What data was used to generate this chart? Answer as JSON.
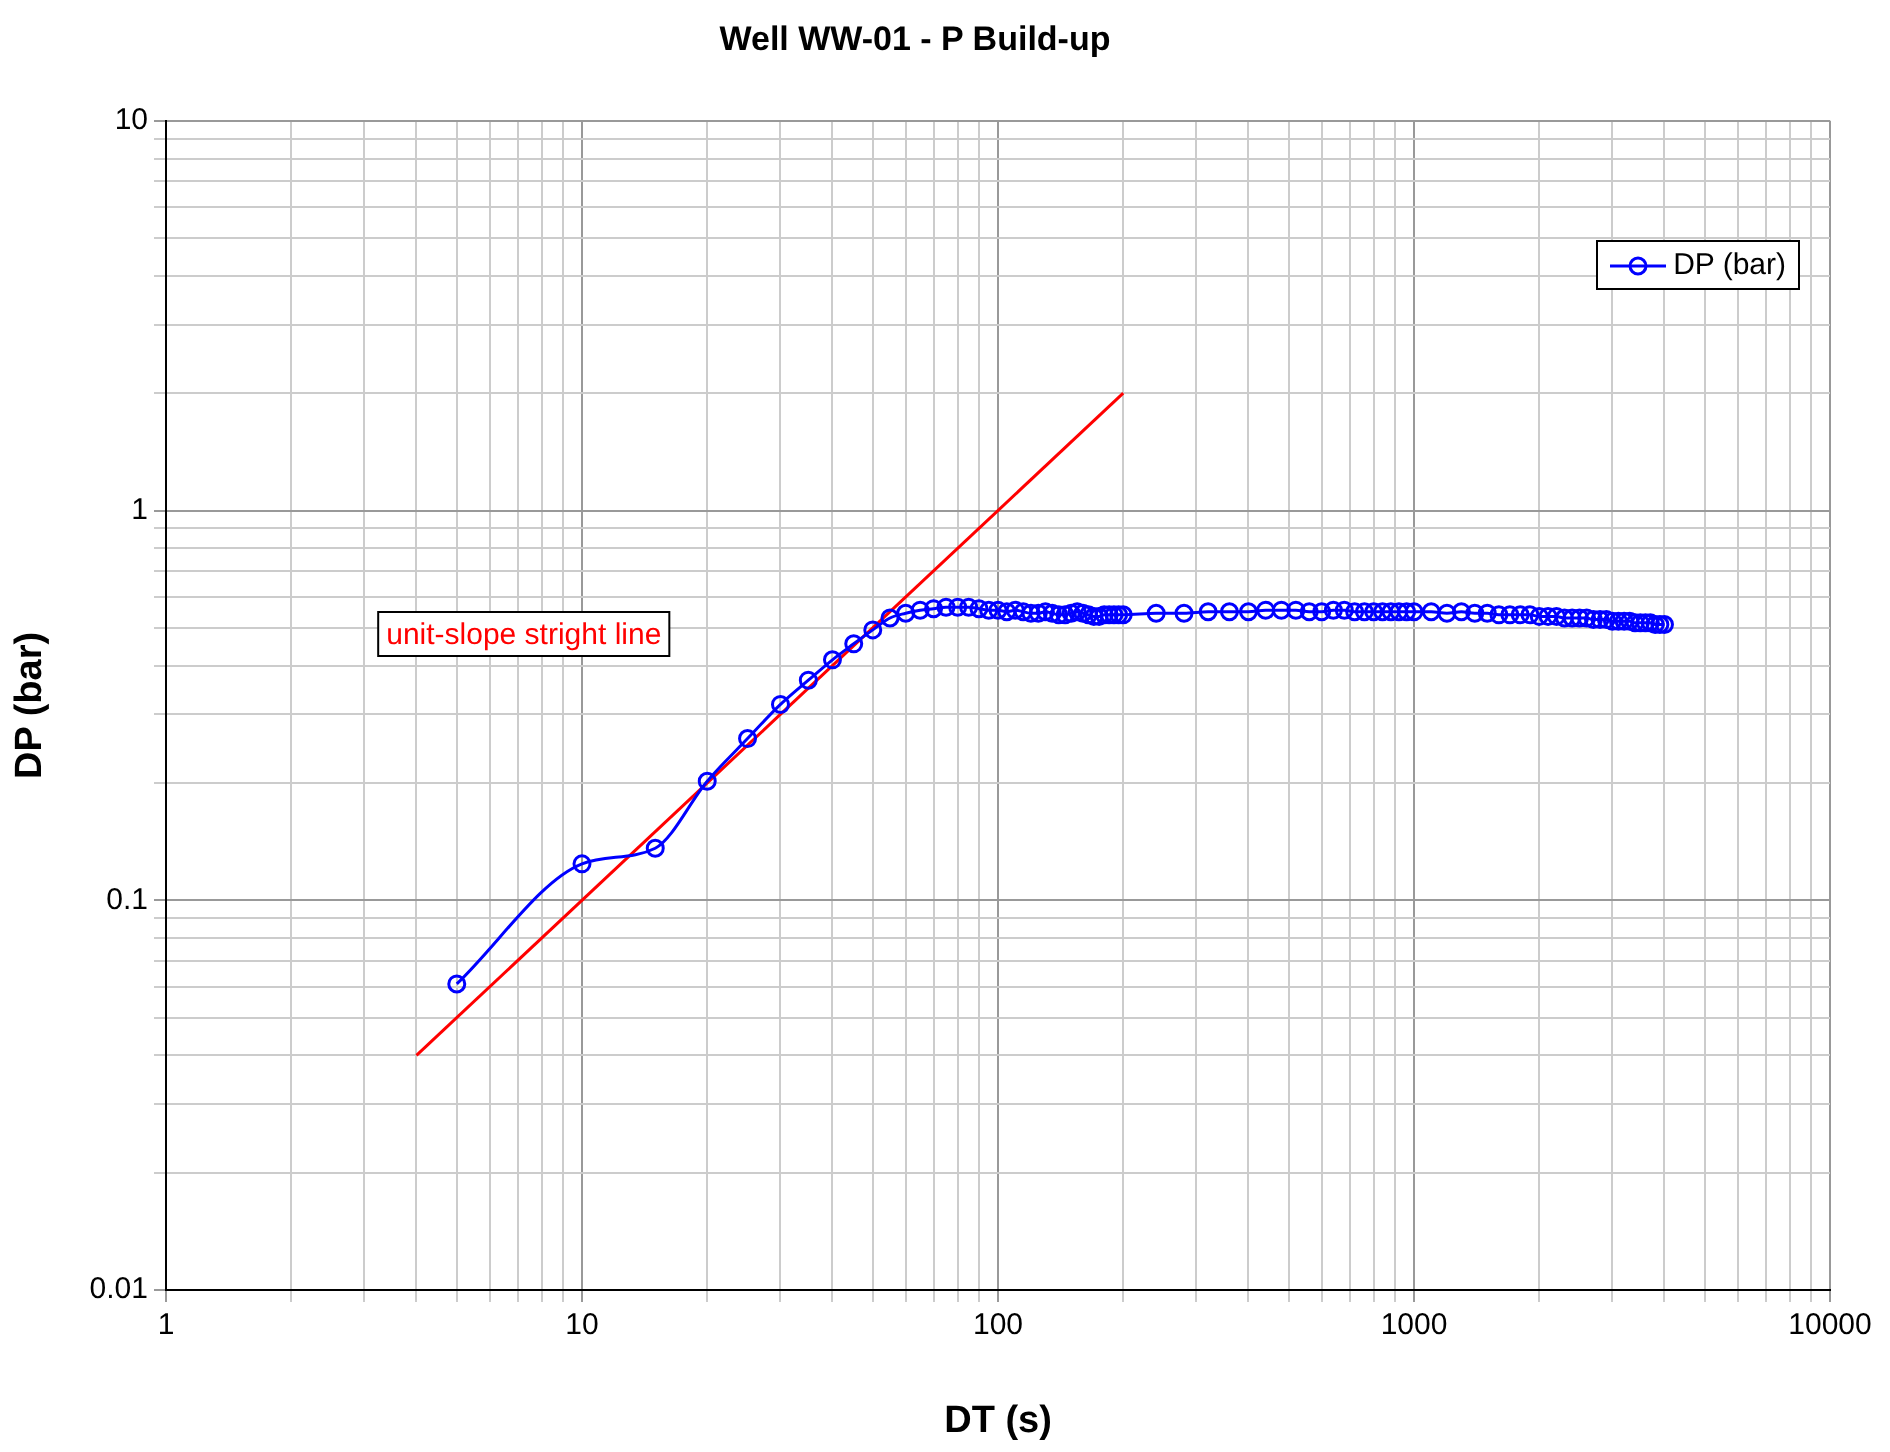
{
  "chart_data": {
    "type": "line",
    "title": "Well WW-01 - P Build-up",
    "xlabel": "DT (s)",
    "ylabel": "DP (bar)",
    "log": "xy",
    "grid": true,
    "legend": "top right",
    "marker": "circle",
    "line_style": "solid",
    "xlim": [
      1,
      10000
    ],
    "ylim": [
      0.01,
      10
    ],
    "xticks": [
      1,
      {
        "value": 2,
        "label": null
      },
      {
        "value": 3,
        "label": null
      },
      {
        "value": 4,
        "label": null
      },
      {
        "value": 5,
        "label": null
      },
      {
        "value": 6,
        "label": null
      },
      {
        "value": 7,
        "label": null
      },
      {
        "value": 8,
        "label": null
      },
      {
        "value": 9,
        "label": null
      },
      10,
      {
        "value": 20,
        "label": null
      },
      {
        "value": 30,
        "label": null
      },
      {
        "value": 40,
        "label": null
      },
      {
        "value": 50,
        "label": null
      },
      {
        "value": 60,
        "label": null
      },
      {
        "value": 70,
        "label": null
      },
      {
        "value": 80,
        "label": null
      },
      {
        "value": 90,
        "label": null
      },
      100,
      {
        "value": 200,
        "label": null
      },
      {
        "value": 300,
        "label": null
      },
      {
        "value": 400,
        "label": null
      },
      {
        "value": 500,
        "label": null
      },
      {
        "value": 600,
        "label": null
      },
      {
        "value": 700,
        "label": null
      },
      {
        "value": 800,
        "label": null
      },
      {
        "value": 900,
        "label": null
      },
      1000,
      {
        "value": 2000,
        "label": null
      },
      {
        "value": 3000,
        "label": null
      },
      {
        "value": 4000,
        "label": null
      },
      {
        "value": 5000,
        "label": null
      },
      {
        "value": 6000,
        "label": null
      },
      {
        "value": 7000,
        "label": null
      },
      {
        "value": 8000,
        "label": null
      },
      {
        "value": 9000,
        "label": null
      },
      10000
    ],
    "yticks": [
      0.01,
      {
        "value": 0.02,
        "label": null
      },
      {
        "value": 0.03,
        "label": null
      },
      {
        "value": 0.04,
        "label": null
      },
      {
        "value": 0.05,
        "label": null
      },
      {
        "value": 0.06,
        "label": null
      },
      {
        "value": 0.07,
        "label": null
      },
      {
        "value": 0.08,
        "label": null
      },
      {
        "value": 0.09,
        "label": null
      },
      0.1,
      {
        "value": 0.2,
        "label": null
      },
      {
        "value": 0.3,
        "label": null
      },
      {
        "value": 0.4,
        "label": null
      },
      {
        "value": 0.5,
        "label": null
      },
      {
        "value": 0.6,
        "label": null
      },
      {
        "value": 0.7,
        "label": null
      },
      {
        "value": 0.8,
        "label": null
      },
      {
        "value": 0.9,
        "label": null
      },
      1,
      {
        "value": 2,
        "label": null
      },
      {
        "value": 3,
        "label": null
      },
      {
        "value": 4,
        "label": null
      },
      {
        "value": 5,
        "label": null
      },
      {
        "value": 6,
        "label": null
      },
      {
        "value": 7,
        "label": null
      },
      {
        "value": 8,
        "label": null
      },
      {
        "value": 9,
        "label": null
      },
      10
    ],
    "annotations": [
      "unit-slope stright line"
    ],
    "series": [
      {
        "name": "DP (bar)",
        "color": "#0000ff",
        "x": [
          5,
          10,
          15,
          20,
          25,
          30,
          35,
          40,
          45,
          50,
          55,
          60,
          65,
          70,
          75,
          80,
          85,
          90,
          95,
          100,
          105,
          110,
          115,
          120,
          125,
          130,
          135,
          140,
          145,
          150,
          155,
          160,
          165,
          170,
          175,
          180,
          185,
          190,
          195,
          200,
          240,
          280,
          320,
          360,
          400,
          440,
          480,
          520,
          560,
          600,
          640,
          680,
          720,
          760,
          800,
          840,
          880,
          920,
          960,
          1000,
          1100,
          1200,
          1300,
          1400,
          1500,
          1600,
          1700,
          1800,
          1900,
          2000,
          2100,
          2200,
          2300,
          2400,
          2500,
          2600,
          2700,
          2800,
          2900,
          3000,
          3100,
          3200,
          3300,
          3400,
          3500,
          3600,
          3700,
          3800,
          3900,
          4000
        ],
        "values": [
          0.061,
          0.124,
          0.136,
          0.202,
          0.26,
          0.318,
          0.367,
          0.414,
          0.455,
          0.494,
          0.53,
          0.545,
          0.555,
          0.56,
          0.565,
          0.565,
          0.565,
          0.56,
          0.555,
          0.555,
          0.55,
          0.555,
          0.55,
          0.545,
          0.545,
          0.55,
          0.545,
          0.54,
          0.54,
          0.545,
          0.55,
          0.545,
          0.54,
          0.535,
          0.535,
          0.54,
          0.54,
          0.54,
          0.54,
          0.54,
          0.545,
          0.545,
          0.55,
          0.55,
          0.55,
          0.555,
          0.555,
          0.555,
          0.55,
          0.55,
          0.555,
          0.555,
          0.55,
          0.55,
          0.55,
          0.55,
          0.55,
          0.55,
          0.55,
          0.55,
          0.55,
          0.545,
          0.55,
          0.545,
          0.545,
          0.54,
          0.54,
          0.54,
          0.54,
          0.535,
          0.535,
          0.535,
          0.53,
          0.53,
          0.53,
          0.53,
          0.525,
          0.525,
          0.525,
          0.52,
          0.52,
          0.52,
          0.52,
          0.515,
          0.515,
          0.515,
          0.515,
          0.51,
          0.51,
          0.51
        ]
      },
      {
        "color": "#ff0000",
        "marker": "none",
        "x": [
          4,
          200
        ],
        "values": [
          0.04,
          2
        ]
      }
    ]
  }
}
